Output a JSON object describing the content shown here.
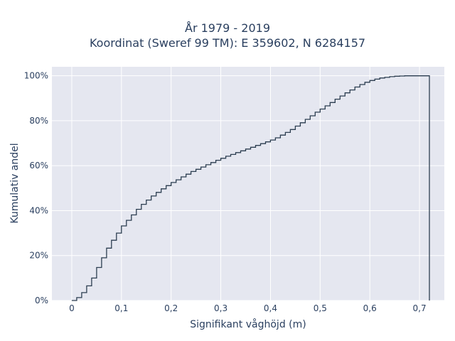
{
  "chart_data": {
    "type": "line",
    "line_shape": "step",
    "title_line1": "År 1979 - 2019",
    "title_line2": "Koordinat (Sweref 99 TM): E 359602, N 6284157",
    "xlabel": "Signifikant våghöjd (m)",
    "ylabel": "Kumulativ andel",
    "xlim": [
      -0.04,
      0.75
    ],
    "ylim": [
      0,
      1.04
    ],
    "x_ticks": [
      0,
      0.1,
      0.2,
      0.3,
      0.4,
      0.5,
      0.6,
      0.7
    ],
    "x_tick_labels": [
      "0",
      "0,1",
      "0,2",
      "0,3",
      "0,4",
      "0,5",
      "0,6",
      "0,7"
    ],
    "y_ticks": [
      0,
      0.2,
      0.4,
      0.6,
      0.8,
      1.0
    ],
    "y_tick_labels": [
      "0%",
      "20%",
      "40%",
      "60%",
      "80%",
      "100%"
    ],
    "grid": true,
    "background": "#e5e7f0",
    "line_color": "#2c3e50",
    "x": [
      0,
      0.01,
      0.02,
      0.03,
      0.04,
      0.05,
      0.06,
      0.07,
      0.08,
      0.09,
      0.1,
      0.11,
      0.12,
      0.13,
      0.14,
      0.15,
      0.16,
      0.17,
      0.18,
      0.19,
      0.2,
      0.21,
      0.22,
      0.23,
      0.24,
      0.25,
      0.26,
      0.27,
      0.28,
      0.29,
      0.3,
      0.31,
      0.32,
      0.33,
      0.34,
      0.35,
      0.36,
      0.37,
      0.38,
      0.39,
      0.4,
      0.41,
      0.42,
      0.43,
      0.44,
      0.45,
      0.46,
      0.47,
      0.48,
      0.49,
      0.5,
      0.51,
      0.52,
      0.53,
      0.54,
      0.55,
      0.56,
      0.57,
      0.58,
      0.59,
      0.6,
      0.61,
      0.62,
      0.63,
      0.64,
      0.65,
      0.66,
      0.67,
      0.68,
      0.69,
      0.7,
      0.71,
      0.72
    ],
    "y": [
      0.0,
      0.013,
      0.035,
      0.065,
      0.1,
      0.147,
      0.19,
      0.233,
      0.268,
      0.3,
      0.332,
      0.357,
      0.381,
      0.406,
      0.428,
      0.447,
      0.465,
      0.481,
      0.497,
      0.511,
      0.525,
      0.537,
      0.55,
      0.562,
      0.574,
      0.584,
      0.594,
      0.604,
      0.614,
      0.624,
      0.633,
      0.642,
      0.65,
      0.658,
      0.666,
      0.674,
      0.682,
      0.69,
      0.698,
      0.706,
      0.714,
      0.724,
      0.736,
      0.748,
      0.761,
      0.776,
      0.791,
      0.806,
      0.822,
      0.838,
      0.852,
      0.866,
      0.881,
      0.896,
      0.91,
      0.924,
      0.937,
      0.95,
      0.961,
      0.971,
      0.979,
      0.985,
      0.99,
      0.993,
      0.996,
      0.998,
      0.999,
      1.0,
      1.0,
      1.0,
      1.0,
      1.0,
      0.0
    ]
  }
}
